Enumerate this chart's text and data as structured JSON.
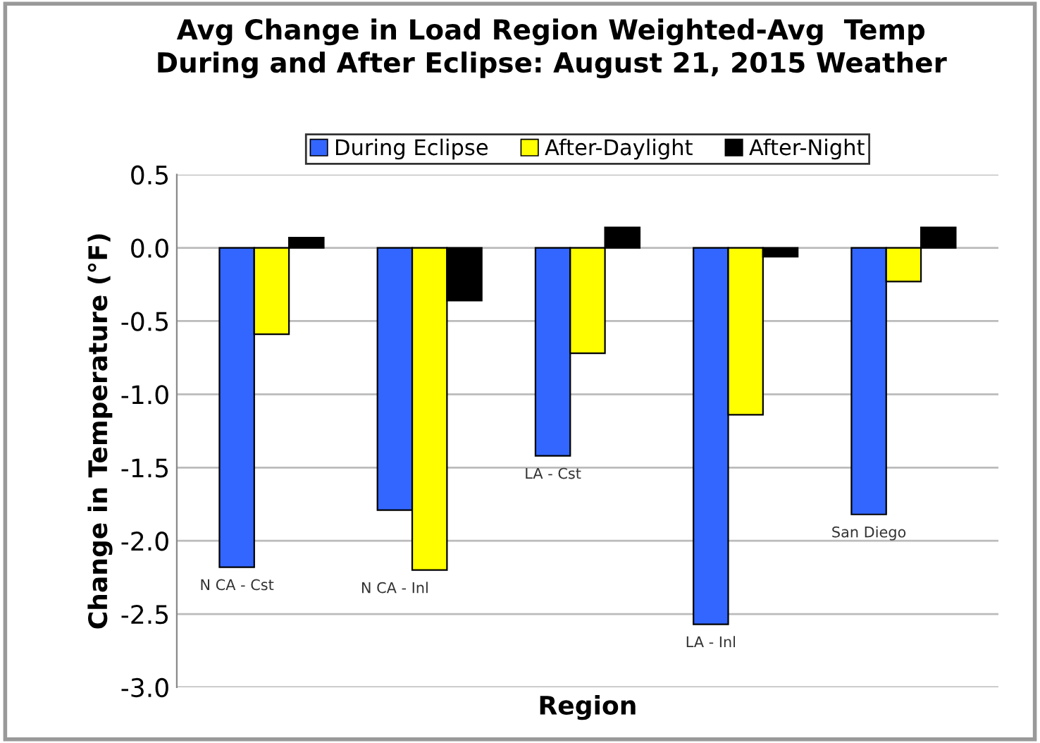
{
  "chart_data": {
    "type": "bar",
    "title": "Avg Change in Load Region Weighted-Avg  Temp\nDuring and After Eclipse: August 21, 2015 Weather",
    "xlabel": "Region",
    "ylabel": "Change in Temperature (°F)",
    "categories": [
      "N CA - Cst",
      "N CA - Inl",
      "LA - Cst",
      "LA - Inl",
      "San Diego"
    ],
    "series": [
      {
        "name": "During Eclipse",
        "color": "#3366ff",
        "values": [
          -2.18,
          -1.79,
          -1.42,
          -2.57,
          -1.82
        ]
      },
      {
        "name": "After-Daylight",
        "color": "#ffff00",
        "values": [
          -0.59,
          -2.2,
          -0.72,
          -1.14,
          -0.23
        ]
      },
      {
        "name": "After-Night",
        "color": "#000000",
        "values": [
          0.07,
          -0.36,
          0.14,
          -0.06,
          0.14
        ]
      }
    ],
    "ylim": [
      -3.0,
      0.5
    ],
    "yticks": [
      {
        "value": -3.0,
        "label": "-3.0"
      },
      {
        "value": -2.5,
        "label": "-2.5"
      },
      {
        "value": -2.0,
        "label": "-2.0"
      },
      {
        "value": -1.5,
        "label": "-1.5"
      },
      {
        "value": -1.0,
        "label": "-1.0"
      },
      {
        "value": -0.5,
        "label": "-0.5"
      },
      {
        "value": 0.0,
        "label": "0.0"
      },
      {
        "value": 0.5,
        "label": "0.5"
      }
    ],
    "grid": "y",
    "legend": "top"
  }
}
